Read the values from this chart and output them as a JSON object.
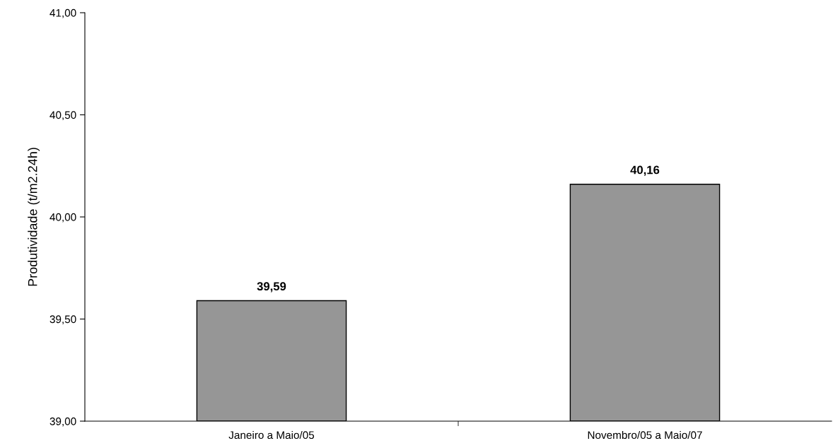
{
  "chart_data": {
    "type": "bar",
    "ylabel": "Produtividade (t/m2.24h)",
    "categories": [
      "Janeiro a Maio/05",
      "Novembro/05 a Maio/07"
    ],
    "values": [
      39.59,
      40.16
    ],
    "color": "#969696",
    "value_labels": [
      "39,59",
      "40,16"
    ],
    "ylim": [
      39,
      41
    ],
    "yticks": [
      {
        "value": 39,
        "label": "39,00"
      },
      {
        "value": 39.5,
        "label": "39,50"
      },
      {
        "value": 40,
        "label": "40,00"
      },
      {
        "value": 40.5,
        "label": "40,50"
      },
      {
        "value": 41,
        "label": "41,00"
      }
    ],
    "grid": false,
    "legend": false
  }
}
